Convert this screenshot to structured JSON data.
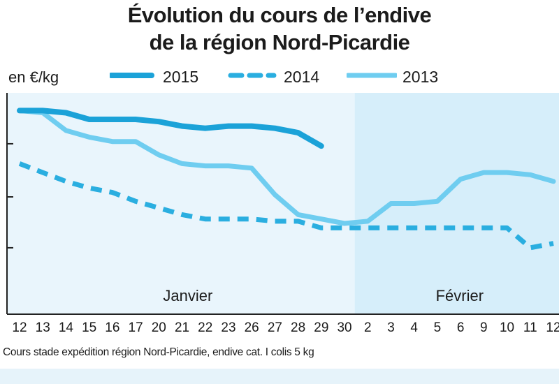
{
  "colors": {
    "s2015": "#1ba2d8",
    "s2014": "#2aaee0",
    "s2013": "#6fcdf0",
    "bg_january": "#e9f5fc",
    "bg_february": "#d6eefa",
    "axis": "#222222"
  },
  "chart_data": {
    "type": "line",
    "title": "Évolution du cours de l’endive de la région Nord-Picardie",
    "title_line1": "Évolution du cours de l’endive",
    "title_line2": "de la région Nord-Picardie",
    "ylabel": "en €/kg",
    "x": [
      "12",
      "13",
      "14",
      "15",
      "16",
      "17",
      "20",
      "21",
      "22",
      "23",
      "26",
      "27",
      "28",
      "29",
      "30",
      "2",
      "3",
      "4",
      "5",
      "6",
      "9",
      "10",
      "11",
      "12"
    ],
    "months": [
      {
        "label": "Janvier",
        "start": 0,
        "end": 14
      },
      {
        "label": "Février",
        "start": 15,
        "end": 23
      }
    ],
    "series": [
      {
        "name": "2015",
        "style": "solid-thick",
        "values": [
          0.92,
          0.92,
          0.91,
          0.88,
          0.88,
          0.88,
          0.87,
          0.85,
          0.84,
          0.85,
          0.85,
          0.84,
          0.82,
          0.76,
          null,
          null,
          null,
          null,
          null,
          null,
          null,
          null,
          null,
          null
        ]
      },
      {
        "name": "2014",
        "style": "dashed",
        "values": [
          0.68,
          0.64,
          0.6,
          0.57,
          0.55,
          0.51,
          0.48,
          0.45,
          0.43,
          0.43,
          0.43,
          0.42,
          0.42,
          0.39,
          0.39,
          0.39,
          0.39,
          0.39,
          0.39,
          0.39,
          0.39,
          0.39,
          0.3,
          0.32
        ]
      },
      {
        "name": "2013",
        "style": "solid",
        "values": [
          0.92,
          0.91,
          0.83,
          0.8,
          0.78,
          0.78,
          0.72,
          0.68,
          0.67,
          0.67,
          0.66,
          0.54,
          0.45,
          0.43,
          0.41,
          0.42,
          0.5,
          0.5,
          0.51,
          0.61,
          0.64,
          0.64,
          0.63,
          0.6
        ]
      }
    ],
    "ylim": [
      0,
      1
    ],
    "yticks": [
      0.3,
      0.53,
      0.77
    ],
    "legend": "top",
    "grid": false
  },
  "source_note": "Cours stade expédition région Nord-Picardie, endive cat. I colis 5 kg"
}
